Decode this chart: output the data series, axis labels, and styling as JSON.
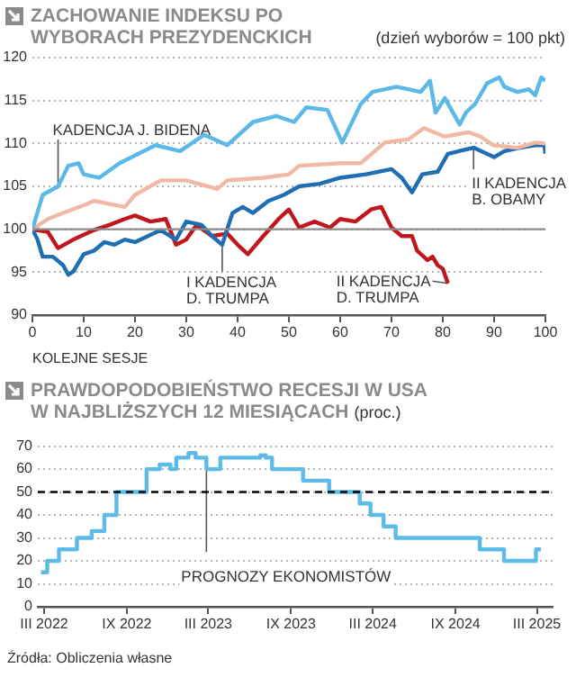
{
  "chart_data": [
    {
      "type": "line",
      "title": "ZACHOWANIE INDEKSU PO WYBORACH PREZYDENCKICH",
      "subtitle": "(dzień wyborów = 100 pkt)",
      "xlabel": "KOLEJNE SESJE",
      "xlim": [
        0,
        100
      ],
      "xticks": [
        0,
        10,
        20,
        30,
        40,
        50,
        60,
        70,
        80,
        90,
        100
      ],
      "ylim": [
        90,
        120
      ],
      "yticks": [
        90,
        95,
        100,
        105,
        110,
        115,
        120
      ],
      "grid": "y",
      "ref_lines": [
        {
          "axis": "y",
          "value": 100,
          "color": "#8c8c8c",
          "line_style": "solid"
        }
      ],
      "annotations": [
        {
          "text": "KADENCJA J. BIDENA",
          "x": 5,
          "y": 105
        },
        {
          "text": "II KADENCJA B. OBAMY",
          "x": 86,
          "y": 109.5
        },
        {
          "text": "I KADENCJA D. TRUMPA",
          "x": 37,
          "y": 98.2
        },
        {
          "text": "II KADENCJA D. TRUMPA",
          "x": 81,
          "y": 93.7
        }
      ],
      "series": [
        {
          "color": "#5cb8e6",
          "x": [
            0,
            2,
            5,
            7,
            9,
            10,
            13,
            17,
            24,
            28.8,
            33.5,
            38,
            43,
            47.5,
            51,
            53.4,
            57.5,
            60.4,
            64,
            66.3,
            71,
            75.7,
            77.5,
            78.6,
            80.4,
            83.3,
            84.5,
            86.3,
            88.6,
            91,
            92,
            94.5,
            96.8,
            98,
            99.2,
            100
          ],
          "values": [
            100,
            104,
            105,
            107.4,
            107.7,
            106.4,
            106,
            107.7,
            109.8,
            109.1,
            111,
            109.8,
            112.5,
            113.2,
            112.5,
            114.2,
            113.9,
            110.1,
            114.6,
            116,
            116.6,
            116,
            117.3,
            113.6,
            115.3,
            112.2,
            113.6,
            114.6,
            117,
            117.7,
            116.6,
            116,
            116.3,
            115.6,
            117.7,
            117.3
          ]
        },
        {
          "color": "#f0b9a6",
          "x": [
            0,
            3,
            6,
            10,
            12,
            18,
            20,
            25,
            30,
            36,
            38,
            45,
            50,
            52,
            60,
            64,
            68.7,
            73.4,
            76.3,
            80.4,
            85,
            87.4,
            89.8,
            94.5,
            98,
            100
          ],
          "values": [
            100,
            101.2,
            101.9,
            102.8,
            103.3,
            102.6,
            104,
            105.7,
            105.7,
            104.7,
            105.7,
            106,
            106.4,
            107.4,
            107.7,
            107.7,
            110.1,
            110.5,
            111.8,
            110.8,
            111.3,
            110.8,
            109.8,
            109.5,
            110.1,
            110
          ]
        },
        {
          "color": "#1f6db3",
          "x": [
            0,
            1,
            2,
            4,
            6,
            7,
            8,
            10,
            12,
            14,
            16,
            18,
            20,
            25,
            28,
            30,
            33,
            35,
            37,
            39,
            41,
            43,
            46,
            49,
            52,
            56,
            60,
            65,
            70,
            72,
            74,
            76,
            79,
            81,
            86,
            90,
            92,
            95,
            98,
            99.8,
            100
          ],
          "values": [
            100,
            98.8,
            96.8,
            96.8,
            95.8,
            94.7,
            95.1,
            97.1,
            97.5,
            98.5,
            98.2,
            98.8,
            98.5,
            99.9,
            98.8,
            100.9,
            100.5,
            99.2,
            98.2,
            101.9,
            102.6,
            101.9,
            103.3,
            104,
            105,
            105.3,
            106,
            106.4,
            107,
            106,
            104.3,
            106.4,
            106.7,
            108.8,
            109.5,
            108.4,
            109.1,
            109.5,
            109.8,
            109.8,
            108.8
          ]
        },
        {
          "color": "#c0171f",
          "x": [
            0,
            3,
            5,
            8,
            12,
            15,
            18,
            20,
            23,
            26,
            28,
            30,
            32,
            35,
            38,
            40,
            42,
            45,
            48,
            50,
            52,
            55,
            58,
            60,
            63,
            66,
            68,
            70,
            72,
            74,
            75,
            77,
            78,
            79,
            80,
            81
          ],
          "values": [
            100,
            99.7,
            97.8,
            98.8,
            99.9,
            100.5,
            101.2,
            101.6,
            100.9,
            101.2,
            98.2,
            98.8,
            100.5,
            99.2,
            99.5,
            98.2,
            97.1,
            99.2,
            101.2,
            102.3,
            100.2,
            100.9,
            100.2,
            101.2,
            100.9,
            102.3,
            102.6,
            100.2,
            99.2,
            99.2,
            97.5,
            96.4,
            96.8,
            95.8,
            95.4,
            93.7
          ]
        }
      ]
    },
    {
      "type": "step",
      "title": "PRAWDOPODOBIEŃSTWO RECESJI W USA W NAJBLIŻSZYCH 12 MIESIĄCACH",
      "subtitle": "(proc.)",
      "xlim": [
        "2022-02-15",
        "2025-04-05"
      ],
      "xticks": [
        {
          "value": "2022-03",
          "label": "III 2022"
        },
        {
          "value": "2022-09",
          "label": "IX 2022"
        },
        {
          "value": "2023-03",
          "label": "III 2023"
        },
        {
          "value": "2023-09",
          "label": "IX 2023"
        },
        {
          "value": "2024-03",
          "label": "III 2024"
        },
        {
          "value": "2024-09",
          "label": "IX 2024"
        },
        {
          "value": "2025-03",
          "label": "III 2025"
        }
      ],
      "ylim": [
        0,
        70
      ],
      "yticks": [
        0,
        10,
        20,
        30,
        40,
        50,
        60,
        70
      ],
      "grid": "y",
      "ref_lines": [
        {
          "axis": "y",
          "value": 50,
          "color": "#000000",
          "line_style": "dashed"
        }
      ],
      "annotations": [
        {
          "text": "PROGNOZY EKONOMISTÓW",
          "x": "2023-02-25",
          "y": 60
        },
        "Źródła: Obliczenia własne"
      ],
      "series": [
        {
          "color": "#5cbbe8",
          "x": [
            "2022-02-22",
            "2022-03-08",
            "2022-04-03",
            "2022-05-13",
            "2022-06-15",
            "2022-07-13",
            "2022-08-09",
            "2022-10-15",
            "2022-11-13",
            "2022-12-07",
            "2022-12-20",
            "2023-01-16",
            "2023-02-01",
            "2023-02-25",
            "2023-03-28",
            "2023-06-25",
            "2023-07-07",
            "2023-07-21",
            "2023-09-28",
            "2023-11-25",
            "2024-02-01",
            "2024-02-25",
            "2024-03-25",
            "2024-04-21",
            "2024-10-25",
            "2024-12-18",
            "2025-02-27",
            "2025-03-10"
          ],
          "values": [
            15,
            20,
            25,
            30,
            33,
            40,
            50,
            60,
            62,
            60,
            65,
            67,
            65,
            60,
            65,
            66,
            65,
            60,
            55,
            50,
            45,
            40,
            35,
            30,
            25,
            20,
            25,
            25
          ]
        }
      ]
    }
  ]
}
